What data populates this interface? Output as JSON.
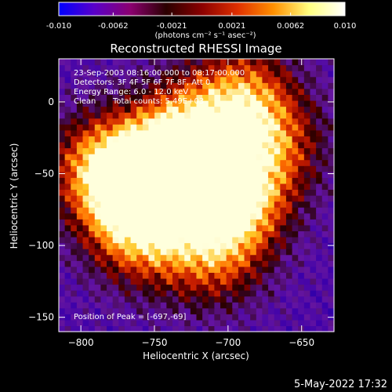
{
  "chart_data": {
    "type": "heatmap",
    "title": "Reconstructed RHESSI Image",
    "xlabel": "Heliocentric X (arcsec)",
    "ylabel": "Heliocentric Y (arcsec)",
    "xlim": [
      -815,
      -628
    ],
    "ylim": [
      -160,
      30
    ],
    "x_ticks": [
      -800,
      -750,
      -700,
      -650
    ],
    "y_ticks": [
      0,
      -50,
      -100,
      -150
    ],
    "colorbar": {
      "min": -0.01,
      "max": 0.01,
      "ticks": [
        "-0.010",
        "-0.0062",
        "-0.0021",
        "0.0021",
        "0.0062",
        "0.010"
      ],
      "units_label": "(photons cm⁻² s⁻¹ asec⁻²)",
      "colors": [
        "#0000ff",
        "#5a00c8",
        "#8b0070",
        "#2a0000",
        "#8b0000",
        "#e03000",
        "#ff9000",
        "#ffff80",
        "#ffffff"
      ]
    },
    "annotations": {
      "time_range": "23-Sep-2003 08:16:00.000 to 08:17:00.000",
      "detectors": "Detectors: 3F 4F 5F 6F 7F 8F, Att 0",
      "energy": "Energy Range: 6.0 - 12.0 keV",
      "clean": "Clean",
      "total_counts": "Total counts: 5.49E+03",
      "peak": "Position of Peak = [-697,-69]"
    },
    "peak_position": [
      -697,
      -69
    ],
    "bright_regions": [
      {
        "x": -697,
        "y": -69,
        "value": 0.01
      },
      {
        "x": -745,
        "y": -52,
        "value": 0.0075
      },
      {
        "x": -770,
        "y": -60,
        "value": 0.0062
      },
      {
        "x": -690,
        "y": 5,
        "value": 0.0055
      },
      {
        "x": -730,
        "y": -20,
        "value": 0.006
      },
      {
        "x": -760,
        "y": -95,
        "value": 0.0045
      },
      {
        "x": -670,
        "y": -30,
        "value": 0.004
      },
      {
        "x": -790,
        "y": -40,
        "value": 0.003
      },
      {
        "x": -710,
        "y": -110,
        "value": 0.0035
      }
    ]
  },
  "footer_date": "5-May-2022 17:32"
}
